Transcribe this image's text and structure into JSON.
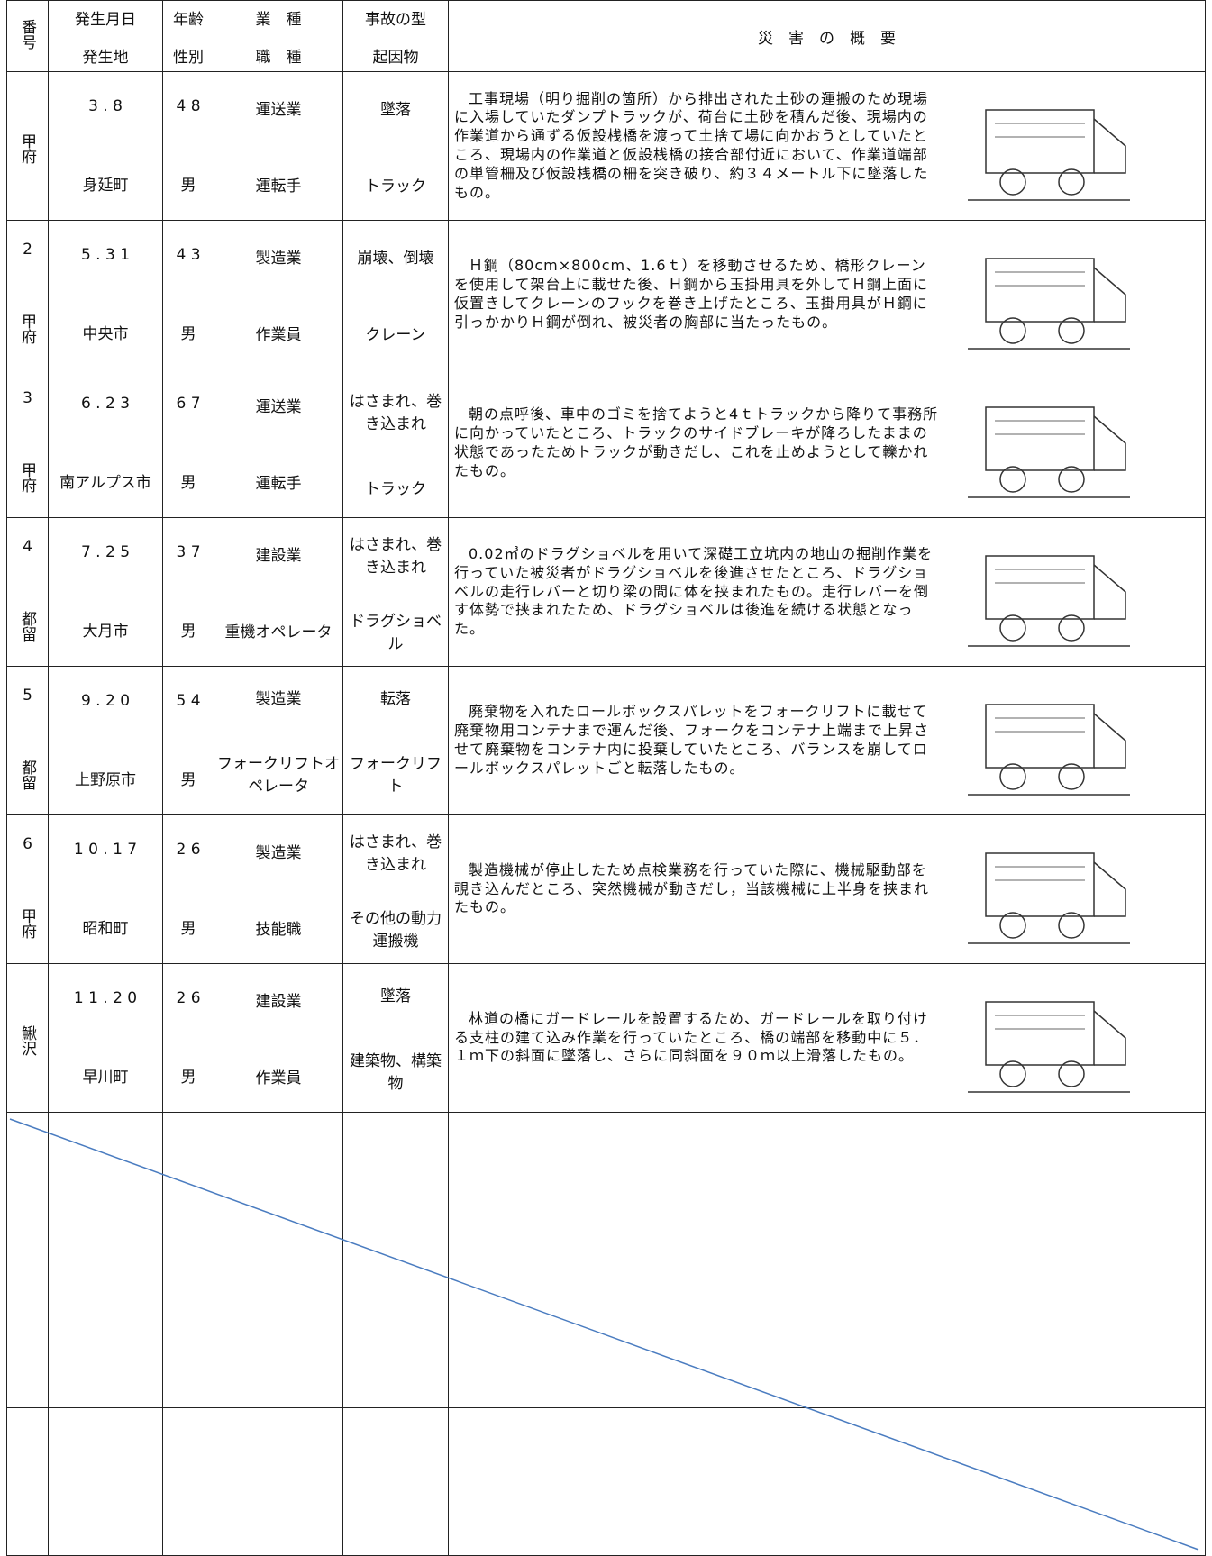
{
  "header": {
    "no": "番号",
    "date": "発生月日",
    "place": "発生地",
    "age": "年齢",
    "sex": "性別",
    "industry": "業　種",
    "job": "職　種",
    "type": "事故の型",
    "cause": "起因物",
    "summary": "災　害　の　概　要"
  },
  "rows": [
    {
      "no": null,
      "office": "甲府",
      "date": "3 . 8",
      "place": "身延町",
      "age": "4 8",
      "sex": "男",
      "industry": "運送業",
      "job": "運転手",
      "type": "墜落",
      "cause": "トラック",
      "summary": "工事現場（明り掘削の箇所）から排出された土砂の運搬のため現場に入場していたダンプトラックが、荷台に土砂を積んだ後、現場内の作業道から通ずる仮設桟橋を渡って土捨て場に向かおうとしていたところ、現場内の作業道と仮設桟橋の接合部付近において、作業道端部の単管柵及び仮設桟橋の柵を突き破り、約３４メートル下に墜落したもの。"
    },
    {
      "no": "2",
      "office": "甲府",
      "date": "5 . 3 1",
      "place": "中央市",
      "age": "4 3",
      "sex": "男",
      "industry": "製造業",
      "job": "作業員",
      "type": "崩壊、倒壊",
      "cause": "クレーン",
      "summary": "Ｈ鋼（80cm×800cm、1.6ｔ）を移動させるため、橋形クレーンを使用して架台上に載せた後、Ｈ鋼から玉掛用具を外してＨ鋼上面に仮置きしてクレーンのフックを巻き上げたところ、玉掛用具がＨ鋼に引っかかりＨ鋼が倒れ、被災者の胸部に当たったもの。"
    },
    {
      "no": "3",
      "office": "甲府",
      "date": "6 . 2 3",
      "place": "南アルプス市",
      "age": "6 7",
      "sex": "男",
      "industry": "運送業",
      "job": "運転手",
      "type": "はさまれ、巻き込まれ",
      "cause": "トラック",
      "summary": "朝の点呼後、車中のゴミを捨てようと4ｔトラックから降りて事務所に向かっていたところ、トラックのサイドブレーキが降ろしたままの状態であったためトラックが動きだし、これを止めようとして轢かれたもの。"
    },
    {
      "no": "4",
      "office": "都留",
      "date": "7 . 2 5",
      "place": "大月市",
      "age": "3 7",
      "sex": "男",
      "industry": "建設業",
      "job": "重機オペレータ",
      "type": "はさまれ、巻き込まれ",
      "cause": "ドラグショベル",
      "summary": "0.02㎥のドラグショベルを用いて深礎工立坑内の地山の掘削作業を行っていた被災者がドラグショベルを後進させたところ、ドラグショベルの走行レバーと切り梁の間に体を挟まれたもの。走行レバーを倒す体勢で挟まれたため、ドラグショベルは後進を続ける状態となった。"
    },
    {
      "no": "5",
      "office": "都留",
      "date": "9 . 2 0",
      "place": "上野原市",
      "age": "5 4",
      "sex": "男",
      "industry": "製造業",
      "job": "フォークリフトオペレータ",
      "type": "転落",
      "cause": "フォークリフト",
      "summary": "廃棄物を入れたロールボックスパレットをフォークリフトに載せて廃棄物用コンテナまで運んだ後、フォークをコンテナ上端まで上昇させて廃棄物をコンテナ内に投棄していたところ、バランスを崩してロールボックスパレットごと転落したもの。"
    },
    {
      "no": "6",
      "office": "甲府",
      "date": "1 0 . 1 7",
      "place": "昭和町",
      "age": "2 6",
      "sex": "男",
      "industry": "製造業",
      "job": "技能職",
      "type": "はさまれ、巻き込まれ",
      "cause": "その他の動力運搬機",
      "summary": "製造機械が停止したため点検業務を行っていた際に、機械駆動部を覗き込んだところ、突然機械が動きだし，当該機械に上半身を挟まれたもの。"
    },
    {
      "no": null,
      "office": "鰍沢",
      "date": "1 1 . 2 0",
      "place": "早川町",
      "age": "2 6",
      "sex": "男",
      "industry": "建設業",
      "job": "作業員",
      "type": "墜落",
      "cause": "建築物、構築物",
      "summary": "林道の橋にガードレールを設置するため、ガードレールを取り付ける支柱の建て込み作業を行っていたところ、橋の端部を移動中に５．１ｍ下の斜面に墜落し、さらに同斜面を９０ｍ以上滑落したもの。"
    }
  ]
}
